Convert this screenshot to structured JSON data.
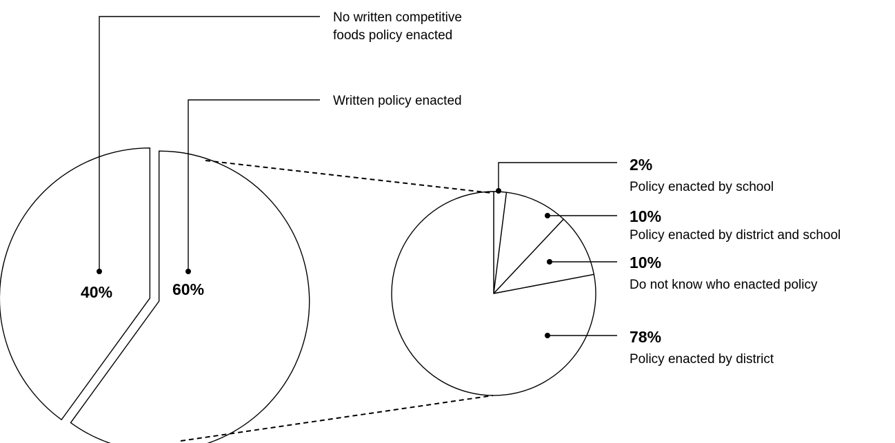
{
  "chart_data": [
    {
      "type": "pie",
      "slices": [
        {
          "label_lines": [
            "No written competitive",
            "foods policy enacted"
          ],
          "value": 40,
          "value_label": "40%"
        },
        {
          "label_lines": [
            "Written policy enacted"
          ],
          "value": 60,
          "value_label": "60%"
        }
      ]
    },
    {
      "type": "pie",
      "slices": [
        {
          "label": "Policy enacted by school",
          "value": 2,
          "value_label": "2%"
        },
        {
          "label": "Policy enacted by district and school",
          "value": 10,
          "value_label": "10%"
        },
        {
          "label": "Do not know who enacted policy",
          "value": 10,
          "value_label": "10%"
        },
        {
          "label": "Policy enacted by district",
          "value": 78,
          "value_label": "78%"
        }
      ]
    }
  ],
  "colors": {
    "stroke": "#000000",
    "fill": "#ffffff"
  }
}
